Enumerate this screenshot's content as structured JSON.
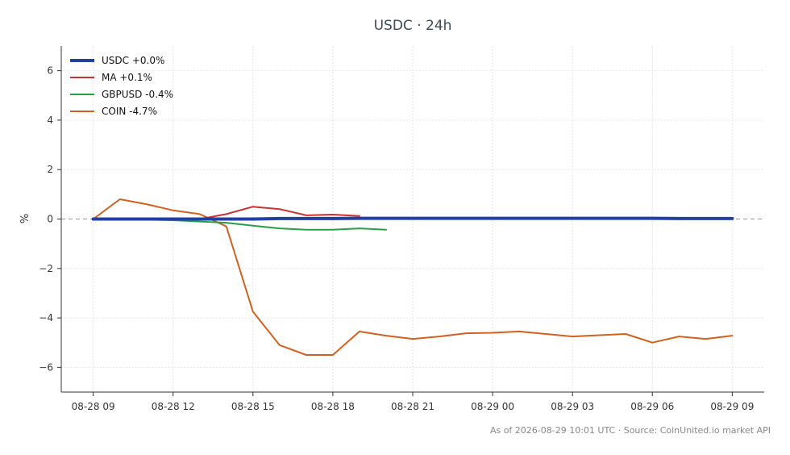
{
  "chart_data": {
    "type": "line",
    "title": "USDC · 24h",
    "ylabel": "%",
    "xlabel": "",
    "ylim": [
      -7,
      7
    ],
    "yticks": [
      6,
      4,
      2,
      0,
      -2,
      -4,
      -6
    ],
    "ytick_labels": [
      "6",
      "4",
      "2",
      "0",
      "−2",
      "−4",
      "−6"
    ],
    "xlim": [
      -1.2,
      25.2
    ],
    "xticks": [
      0,
      3,
      6,
      9,
      12,
      15,
      18,
      21,
      24
    ],
    "xtick_labels": [
      "08-28 09",
      "08-28 12",
      "08-28 15",
      "08-28 18",
      "08-28 21",
      "08-29 00",
      "08-29 03",
      "08-29 06",
      "08-29 09"
    ],
    "grid": true,
    "zero_line": true,
    "legend_position": "top-left",
    "series": [
      {
        "name": "USDC +0.0%",
        "color": "#2240a0",
        "width": 4,
        "x": [
          0,
          1,
          2,
          3,
          4,
          5,
          6,
          7,
          8,
          9,
          10,
          11,
          12,
          13,
          14,
          15,
          16,
          17,
          18,
          19,
          20,
          21,
          22,
          23,
          24
        ],
        "y": [
          0.0,
          0.0,
          0.0,
          0.0,
          0.0,
          0.0,
          0.0,
          0.02,
          0.02,
          0.02,
          0.03,
          0.03,
          0.03,
          0.03,
          0.03,
          0.03,
          0.03,
          0.03,
          0.03,
          0.03,
          0.03,
          0.03,
          0.02,
          0.02,
          0.02
        ]
      },
      {
        "name": "MA +0.1%",
        "color": "#c83232",
        "width": 2,
        "x": [
          4,
          5,
          6,
          7,
          8,
          9,
          10
        ],
        "y": [
          0.0,
          0.2,
          0.5,
          0.4,
          0.15,
          0.18,
          0.12
        ]
      },
      {
        "name": "GBPUSD -0.4%",
        "color": "#27a048",
        "width": 2,
        "x": [
          1,
          2,
          3,
          4,
          5,
          6,
          7,
          8,
          9,
          10,
          11
        ],
        "y": [
          0.0,
          -0.03,
          -0.05,
          -0.1,
          -0.15,
          -0.27,
          -0.38,
          -0.43,
          -0.43,
          -0.38,
          -0.43
        ]
      },
      {
        "name": "COIN -4.7%",
        "color": "#d26120",
        "width": 2,
        "x": [
          0,
          1,
          2,
          3,
          4,
          5,
          6,
          7,
          8,
          9,
          10,
          11,
          12,
          13,
          14,
          15,
          16,
          17,
          18,
          19,
          20,
          21,
          22,
          23,
          24
        ],
        "y": [
          0.0,
          0.8,
          0.6,
          0.35,
          0.2,
          -0.3,
          -3.75,
          -5.1,
          -5.5,
          -5.5,
          -4.55,
          -4.72,
          -4.85,
          -4.75,
          -4.62,
          -4.6,
          -4.55,
          -4.65,
          -4.75,
          -4.7,
          -4.65,
          -5.0,
          -4.75,
          -4.85,
          -4.72
        ]
      }
    ]
  },
  "footer": {
    "text": "As of 2026-08-29 10:01 UTC · Source: CoinUnited.io market API"
  }
}
